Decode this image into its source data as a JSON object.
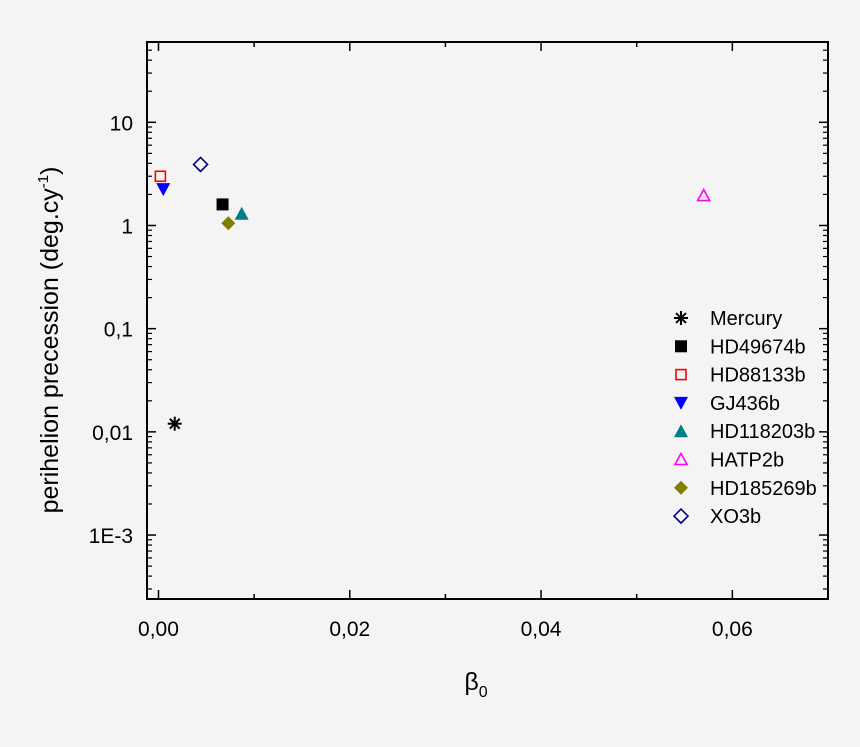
{
  "chart_data": {
    "type": "scatter",
    "title": "",
    "xlabel": "β",
    "xlabel_sub": "0",
    "ylabel": "perihelion precession (deg.cy",
    "ylabel_sup": "-1",
    "ylabel_end": ")",
    "xlim": [
      -0.0012,
      0.07
    ],
    "ylim": [
      0.00024,
      60
    ],
    "yscale": "log",
    "grid": false,
    "legend_position": "right",
    "xticks": [
      {
        "value": 0.0,
        "label": "0,00"
      },
      {
        "value": 0.02,
        "label": "0,02"
      },
      {
        "value": 0.04,
        "label": "0,04"
      },
      {
        "value": 0.06,
        "label": "0,06"
      }
    ],
    "yticks": [
      {
        "value": 0.001,
        "label": "1E-3"
      },
      {
        "value": 0.01,
        "label": "0,01"
      },
      {
        "value": 0.1,
        "label": "0,1"
      },
      {
        "value": 1,
        "label": "1"
      },
      {
        "value": 10,
        "label": "10"
      }
    ],
    "series": [
      {
        "name": "Mercury",
        "marker": "asterisk",
        "color": "#000000",
        "points": [
          {
            "x": 0.0017,
            "y": 0.012
          }
        ]
      },
      {
        "name": "HD49674b",
        "marker": "square-filled",
        "color": "#000000",
        "points": [
          {
            "x": 0.0067,
            "y": 1.6
          }
        ]
      },
      {
        "name": "HD88133b",
        "marker": "square-open",
        "color": "#ff0000",
        "points": [
          {
            "x": 0.0002,
            "y": 3.0
          }
        ]
      },
      {
        "name": "GJ436b",
        "marker": "triangle-down-filled",
        "color": "#0000ff",
        "points": [
          {
            "x": 0.0005,
            "y": 2.25
          }
        ]
      },
      {
        "name": "HD118203b",
        "marker": "triangle-up-filled",
        "color": "#008080",
        "points": [
          {
            "x": 0.0087,
            "y": 1.3
          }
        ]
      },
      {
        "name": "HATP2b",
        "marker": "triangle-up-open",
        "color": "#ff00ff",
        "points": [
          {
            "x": 0.057,
            "y": 1.95
          }
        ]
      },
      {
        "name": "HD185269b",
        "marker": "diamond-filled",
        "color": "#808000",
        "points": [
          {
            "x": 0.0073,
            "y": 1.05
          }
        ]
      },
      {
        "name": "XO3b",
        "marker": "diamond-open",
        "color": "#000080",
        "points": [
          {
            "x": 0.0044,
            "y": 3.9
          }
        ]
      }
    ]
  }
}
